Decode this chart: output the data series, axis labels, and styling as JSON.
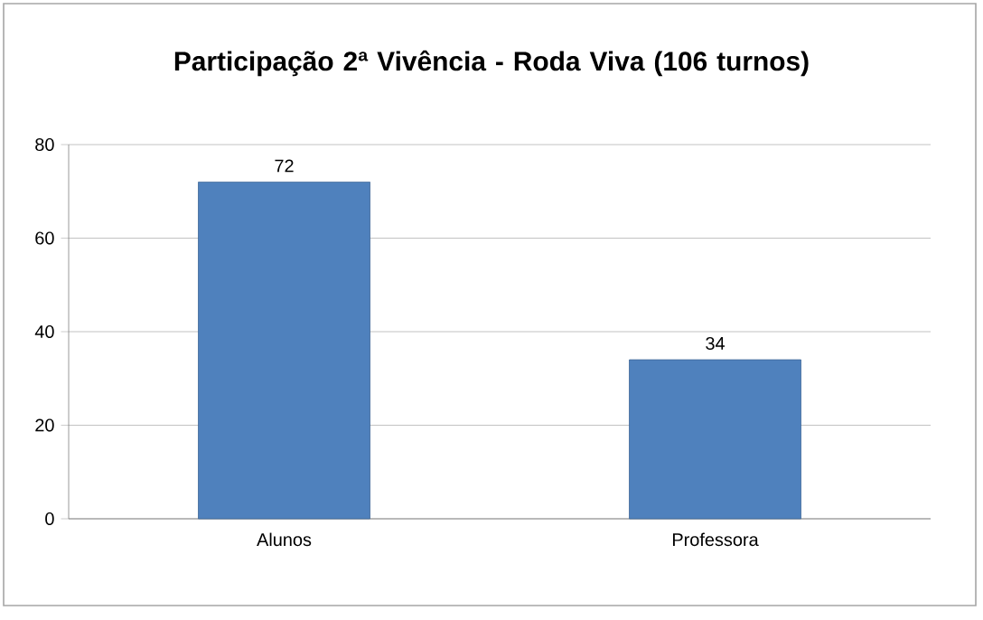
{
  "chart_data": {
    "type": "bar",
    "title": "Participação 2ª Vivência - Roda Viva (106 turnos)",
    "categories": [
      "Alunos",
      "Professora"
    ],
    "values": [
      72,
      34
    ],
    "color": "#4f81bd",
    "data_labels": true,
    "ylim": [
      0,
      80
    ],
    "yticks": [
      0,
      20,
      40,
      60,
      80
    ],
    "grid": "y"
  }
}
